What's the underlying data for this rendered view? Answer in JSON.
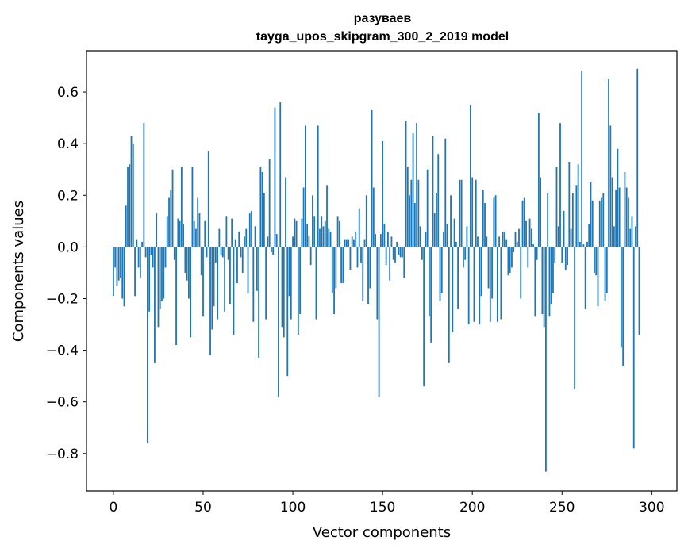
{
  "chart_data": {
    "type": "bar",
    "title_line1": "разуваев",
    "title_line2": "tayga_upos_skipgram_300_2_2019 model",
    "xlabel": "Vector components",
    "ylabel": "Components values",
    "xlim": [
      -15,
      314
    ],
    "ylim": [
      -0.945,
      0.76
    ],
    "x_ticks": [
      0,
      50,
      100,
      150,
      200,
      250,
      300
    ],
    "x_tick_labels": [
      "0",
      "50",
      "100",
      "150",
      "200",
      "250",
      "300"
    ],
    "y_ticks": [
      -0.8,
      -0.6,
      -0.4,
      -0.2,
      0.0,
      0.2,
      0.4,
      0.6
    ],
    "y_tick_labels": [
      "−0.8",
      "−0.6",
      "−0.4",
      "−0.2",
      "0.0",
      "0.2",
      "0.4",
      "0.6"
    ],
    "bar_color": "#1f77b4",
    "x": "integers 0..299",
    "values": [
      -0.19,
      -0.08,
      -0.15,
      -0.13,
      -0.12,
      -0.2,
      -0.23,
      0.16,
      0.31,
      0.32,
      0.43,
      0.4,
      -0.19,
      0.03,
      -0.08,
      -0.12,
      0.02,
      0.48,
      -0.04,
      -0.76,
      -0.25,
      -0.03,
      -0.08,
      -0.45,
      0.13,
      -0.31,
      -0.24,
      -0.21,
      -0.2,
      -0.08,
      0.12,
      0.19,
      0.22,
      0.3,
      -0.05,
      -0.38,
      0.11,
      0.1,
      0.31,
      0.09,
      -0.1,
      -0.13,
      -0.2,
      -0.35,
      0.31,
      0.1,
      0.07,
      0.19,
      0.13,
      -0.11,
      -0.27,
      0.1,
      -0.04,
      0.37,
      -0.42,
      -0.32,
      -0.23,
      -0.06,
      -0.28,
      0.07,
      -0.03,
      -0.04,
      -0.25,
      0.12,
      -0.05,
      -0.22,
      0.11,
      -0.34,
      0.03,
      -0.14,
      0.06,
      -0.04,
      -0.1,
      0.04,
      0.07,
      -0.18,
      0.13,
      0.14,
      -0.29,
      0.08,
      -0.17,
      -0.43,
      0.31,
      0.29,
      0.21,
      -0.28,
      0.04,
      0.34,
      -0.02,
      -0.03,
      0.54,
      0.05,
      -0.58,
      0.56,
      -0.31,
      -0.35,
      0.27,
      -0.5,
      -0.19,
      -0.28,
      0.04,
      0.11,
      0.1,
      -0.34,
      -0.26,
      0.11,
      0.23,
      0.47,
      0.09,
      0.04,
      -0.07,
      0.2,
      0.12,
      -0.28,
      0.47,
      0.07,
      0.12,
      0.08,
      0.1,
      0.24,
      0.07,
      0.06,
      -0.18,
      -0.26,
      -0.16,
      0.12,
      0.1,
      -0.14,
      -0.14,
      0.03,
      0.03,
      0.03,
      -0.09,
      0.04,
      0.03,
      0.06,
      -0.08,
      0.15,
      -0.06,
      -0.21,
      0.03,
      0.2,
      -0.22,
      -0.16,
      0.53,
      0.23,
      0.05,
      -0.28,
      -0.58,
      0.05,
      0.41,
      0.09,
      -0.07,
      0.06,
      -0.13,
      0.04,
      -0.05,
      -0.06,
      0.02,
      -0.03,
      -0.04,
      -0.04,
      -0.12,
      0.49,
      0.31,
      0.2,
      0.26,
      0.44,
      0.17,
      0.48,
      0.26,
      0.08,
      -0.05,
      -0.54,
      0.06,
      0.3,
      -0.27,
      -0.37,
      0.43,
      0.13,
      0.21,
      0.36,
      -0.21,
      -0.18,
      0.06,
      0.42,
      0.09,
      -0.45,
      0.2,
      -0.33,
      0.11,
      0.02,
      -0.24,
      0.26,
      0.26,
      -0.08,
      -0.05,
      0.08,
      -0.3,
      0.55,
      0.27,
      -0.29,
      0.26,
      0.04,
      -0.3,
      -0.19,
      0.22,
      0.17,
      0.04,
      -0.16,
      -0.29,
      -0.2,
      0.19,
      0.2,
      -0.29,
      0.04,
      -0.28,
      0.06,
      0.06,
      0.03,
      -0.11,
      -0.1,
      -0.08,
      -0.02,
      0.06,
      0.02,
      0.07,
      -0.2,
      0.18,
      0.19,
      0.1,
      -0.08,
      0.11,
      0.07,
      0.01,
      -0.27,
      -0.05,
      0.52,
      0.27,
      -0.26,
      -0.31,
      -0.87,
      0.21,
      -0.27,
      -0.22,
      -0.18,
      -0.06,
      0.31,
      0.08,
      0.48,
      -0.06,
      0.14,
      -0.09,
      -0.07,
      0.33,
      0.07,
      0.21,
      -0.55,
      0.24,
      0.32,
      0.02,
      0.68,
      0.01,
      -0.24,
      0.02,
      0.09,
      0.25,
      0.18,
      -0.1,
      -0.11,
      -0.23,
      0.18,
      0.19,
      0.21,
      -0.21,
      -0.18,
      0.65,
      0.47,
      0.27,
      0.08,
      0.22,
      0.38,
      0.23,
      -0.39,
      -0.46,
      0.29,
      0.23,
      0.19,
      0.07,
      0.12,
      -0.78,
      0.08,
      0.69,
      -0.34
    ]
  }
}
